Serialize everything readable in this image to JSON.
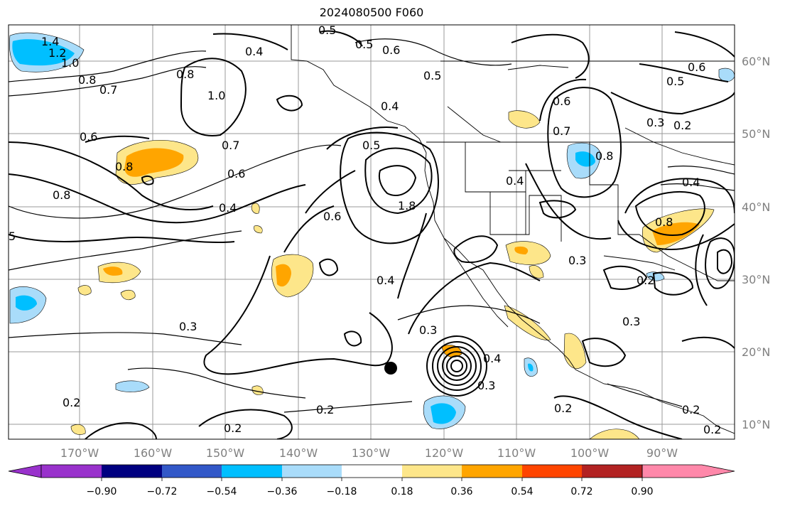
{
  "title": "2024080500 F060",
  "lon_ticks": [
    "170°W",
    "160°W",
    "150°W",
    "140°W",
    "130°W",
    "120°W",
    "110°W",
    "100°W",
    "90°W"
  ],
  "lat_ticks": [
    "60°N",
    "50°N",
    "40°N",
    "30°N",
    "20°N",
    "10°N"
  ],
  "colorbar": {
    "colors": [
      "#9932cc",
      "#000080",
      "#3258c8",
      "#00bfff",
      "#a9dcfa",
      "#ffffff",
      "#fde68a",
      "#ffa500",
      "#ff4500",
      "#b22222",
      "#ff88aa"
    ],
    "labels": [
      "−0.90",
      "−0.72",
      "−0.54",
      "−0.36",
      "−0.18",
      "0.18",
      "0.36",
      "0.54",
      "0.72",
      "0.90"
    ]
  },
  "contour_labels": [
    "1.4",
    "1.2",
    "1.0",
    "0.8",
    "0.7",
    "0.5",
    "0.4",
    "0.5",
    "0.6",
    "0.8",
    "1.0",
    "0.6",
    "0.8",
    "0.7",
    "0.6",
    "0.4",
    "0.8",
    "5",
    "0.5",
    "0.6",
    "0.4",
    "1.8",
    "0.4",
    "0.3",
    "0.2",
    "0.2",
    "0.2",
    "0.3",
    "0.4",
    "0.5",
    "0.6",
    "0.7",
    "0.8",
    "0.4",
    "0.3",
    "0.2",
    "0.4",
    "0.3",
    "0.8",
    "0.6",
    "0.5",
    "0.3",
    "0.2",
    "0.3",
    "0.2",
    "0.2",
    "0.2"
  ],
  "marker": "storm-center-dot"
}
